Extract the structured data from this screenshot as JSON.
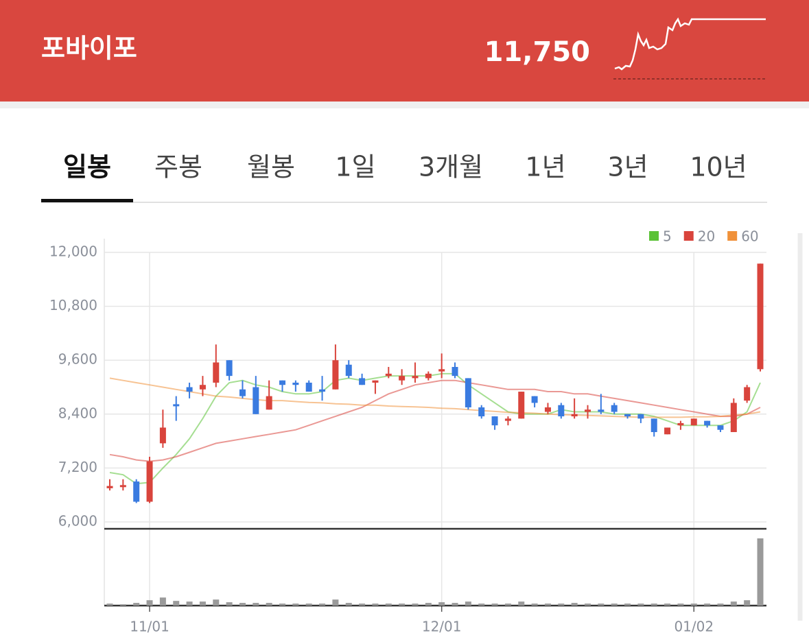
{
  "header": {
    "name": "포바이포",
    "price": "11,750"
  },
  "tabs": {
    "items": [
      "일봉",
      "주봉",
      "월봉",
      "1일",
      "3개월",
      "1년",
      "3년",
      "10년"
    ],
    "selected": 0
  },
  "chart_data": {
    "type": "candlestick",
    "categories": [
      null,
      null,
      null,
      "11/01",
      null,
      null,
      null,
      null,
      null,
      null,
      null,
      null,
      null,
      null,
      null,
      null,
      null,
      null,
      null,
      null,
      null,
      null,
      null,
      null,
      null,
      "12/01",
      null,
      null,
      null,
      null,
      null,
      null,
      null,
      null,
      null,
      null,
      null,
      null,
      null,
      null,
      null,
      null,
      null,
      null,
      "01/02",
      null,
      null,
      null,
      null,
      null
    ],
    "open": [
      6750,
      6800,
      6900,
      6450,
      7750,
      8620,
      9000,
      8950,
      9100,
      9600,
      8950,
      9000,
      8500,
      9150,
      9100,
      9100,
      8950,
      8950,
      9500,
      9200,
      9100,
      9250,
      9150,
      9200,
      9200,
      9350,
      9450,
      9200,
      8550,
      8350,
      8250,
      8300,
      8800,
      8450,
      8600,
      8350,
      8450,
      8500,
      8600,
      8400,
      8400,
      8300,
      7950,
      8150,
      8150,
      8250,
      8150,
      8000,
      8700,
      9400
    ],
    "high": [
      6950,
      6950,
      6950,
      7450,
      8500,
      8800,
      9100,
      9250,
      9950,
      9600,
      9150,
      9250,
      9150,
      9150,
      9150,
      9150,
      9250,
      9950,
      9600,
      9300,
      9150,
      9450,
      9400,
      9550,
      9350,
      9750,
      9550,
      9200,
      8600,
      8350,
      8350,
      8900,
      8800,
      8650,
      8650,
      8750,
      8600,
      8850,
      8650,
      8400,
      8400,
      8300,
      8100,
      8250,
      8300,
      8250,
      8150,
      8750,
      9050,
      11750
    ],
    "low": [
      6700,
      6700,
      6420,
      6420,
      7650,
      8250,
      8750,
      8800,
      9000,
      9150,
      8750,
      8400,
      8500,
      8900,
      8900,
      8900,
      8700,
      8950,
      9200,
      9050,
      8850,
      9200,
      9050,
      9100,
      9150,
      9200,
      9200,
      8500,
      8300,
      8050,
      8150,
      8300,
      8550,
      8400,
      8300,
      8300,
      8300,
      8400,
      8400,
      8300,
      8200,
      7900,
      7950,
      8050,
      8150,
      8100,
      8000,
      8000,
      8650,
      9350
    ],
    "close": [
      6800,
      6820,
      6450,
      7350,
      8100,
      8580,
      8900,
      9050,
      9550,
      9250,
      8800,
      8400,
      8800,
      9050,
      9050,
      8900,
      8900,
      9600,
      9250,
      9050,
      9150,
      9300,
      9250,
      9250,
      9300,
      9400,
      9250,
      8550,
      8350,
      8150,
      8300,
      8900,
      8650,
      8550,
      8350,
      8400,
      8500,
      8450,
      8450,
      8350,
      8300,
      8000,
      8100,
      8200,
      8300,
      8150,
      8050,
      8650,
      9000,
      11750
    ],
    "up_color": "#d9443c",
    "down_color": "#3a7be0",
    "series": [
      {
        "name": "5",
        "color": "#5bc236",
        "values": [
          7100,
          7050,
          6850,
          6880,
          7200,
          7500,
          7850,
          8300,
          8800,
          9100,
          9150,
          9050,
          9000,
          8900,
          8850,
          8850,
          8900,
          9150,
          9200,
          9150,
          9200,
          9250,
          9250,
          9250,
          9250,
          9300,
          9300,
          9050,
          8850,
          8650,
          8450,
          8400,
          8400,
          8400,
          8500,
          8450,
          8450,
          8450,
          8400,
          8400,
          8400,
          8350,
          8250,
          8150,
          8150,
          8150,
          8150,
          8250,
          8450,
          9100
        ]
      },
      {
        "name": "20",
        "color": "#d9443c",
        "values": [
          7500,
          7450,
          7380,
          7350,
          7380,
          7450,
          7550,
          7650,
          7750,
          7800,
          7850,
          7900,
          7950,
          8000,
          8050,
          8150,
          8250,
          8350,
          8450,
          8550,
          8700,
          8850,
          8950,
          9050,
          9100,
          9150,
          9150,
          9100,
          9050,
          9000,
          8950,
          8950,
          8950,
          8900,
          8900,
          8850,
          8850,
          8800,
          8750,
          8700,
          8650,
          8600,
          8550,
          8500,
          8450,
          8400,
          8350,
          8350,
          8400,
          8550
        ]
      },
      {
        "name": "60",
        "color": "#f0913a",
        "values": [
          9200,
          9150,
          9100,
          9050,
          9000,
          8950,
          8900,
          8850,
          8800,
          8780,
          8750,
          8720,
          8700,
          8700,
          8680,
          8660,
          8650,
          8630,
          8620,
          8600,
          8600,
          8580,
          8570,
          8560,
          8550,
          8530,
          8520,
          8500,
          8480,
          8460,
          8440,
          8430,
          8420,
          8400,
          8390,
          8380,
          8370,
          8360,
          8350,
          8340,
          8330,
          8330,
          8330,
          8330,
          8340,
          8340,
          8350,
          8380,
          8400,
          8450
        ]
      }
    ],
    "volume": [
      3,
      2,
      4,
      8,
      12,
      7,
      6,
      6,
      9,
      5,
      4,
      4,
      4,
      3,
      3,
      3,
      3,
      9,
      4,
      3,
      3,
      3,
      3,
      3,
      4,
      5,
      4,
      6,
      3,
      3,
      3,
      6,
      3,
      3,
      3,
      4,
      3,
      3,
      3,
      3,
      3,
      3,
      3,
      3,
      3,
      3,
      3,
      6,
      8,
      100
    ],
    "volume_color": "#9a9a9a",
    "ylim": [
      6000,
      12000
    ],
    "yticks": [
      {
        "value": 6000,
        "label": "6,000"
      },
      {
        "value": 7200,
        "label": "7,200"
      },
      {
        "value": 8400,
        "label": "8,400"
      },
      {
        "value": 9600,
        "label": "9,600"
      },
      {
        "value": 10800,
        "label": "10,800"
      },
      {
        "value": 12000,
        "label": "12,000"
      }
    ],
    "grid": true,
    "legend": "top-right"
  }
}
